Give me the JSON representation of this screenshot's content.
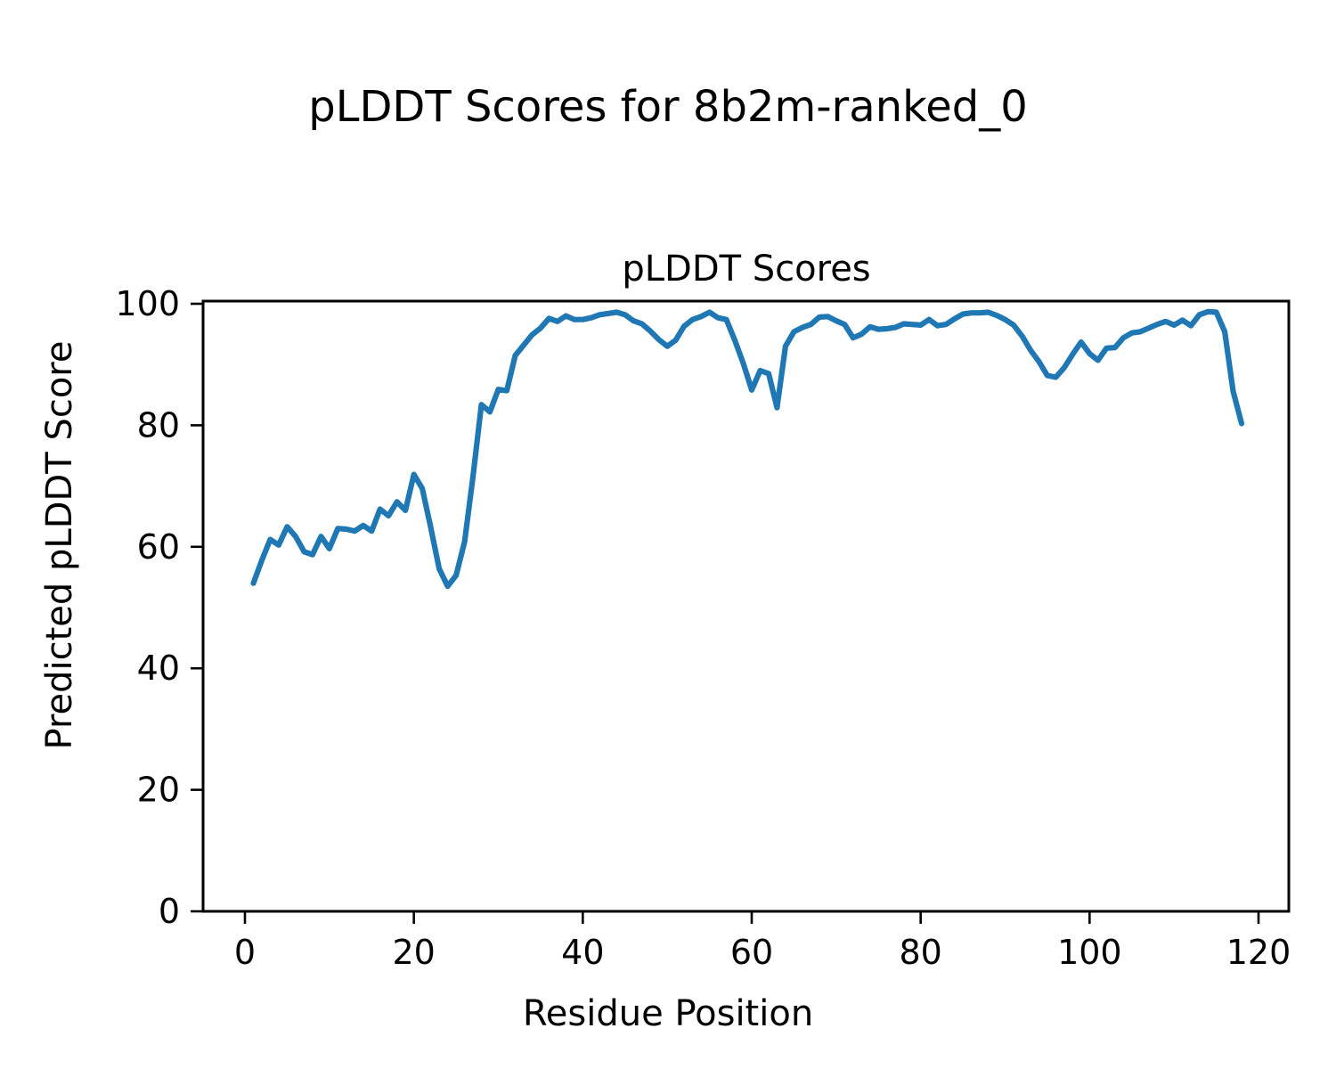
{
  "figure": {
    "suptitle": "pLDDT Scores for 8b2m-ranked_0",
    "axes_title": "pLDDT Scores",
    "xlabel": "Residue Position",
    "ylabel": "Predicted pLDDT Score"
  },
  "chart_data": {
    "type": "line",
    "suptitle": "pLDDT Scores for 8b2m-ranked_0",
    "title": "pLDDT Scores",
    "xlabel": "Residue Position",
    "ylabel": "Predicted pLDDT Score",
    "line_color": "#1f77b4",
    "grid": false,
    "legend": null,
    "xlim": [
      -4.9,
      123.7
    ],
    "ylim": [
      0,
      100.4
    ],
    "xticks": [
      0,
      20,
      40,
      60,
      80,
      100,
      120
    ],
    "yticks": [
      0,
      20,
      40,
      60,
      80,
      100
    ],
    "x_range": [
      1,
      118
    ],
    "series_name": "pLDDT",
    "values": [
      54.0,
      57.8,
      61.2,
      60.3,
      63.3,
      61.7,
      59.2,
      58.7,
      61.7,
      59.7,
      63.0,
      62.9,
      62.6,
      63.5,
      62.6,
      66.2,
      65.1,
      67.4,
      66.0,
      71.9,
      69.6,
      63.2,
      56.4,
      53.5,
      55.3,
      60.8,
      71.5,
      83.4,
      82.2,
      85.9,
      85.7,
      91.5,
      93.2,
      94.9,
      96.0,
      97.6,
      97.1,
      98.0,
      97.4,
      97.4,
      97.7,
      98.2,
      98.4,
      98.6,
      98.2,
      97.2,
      96.7,
      95.5,
      94.1,
      93.0,
      94.0,
      96.3,
      97.4,
      97.9,
      98.6,
      97.7,
      97.4,
      94.0,
      90.2,
      85.8,
      89.0,
      88.5,
      82.9,
      93.0,
      95.4,
      96.1,
      96.6,
      97.8,
      97.9,
      97.2,
      96.6,
      94.4,
      95.0,
      96.2,
      95.8,
      95.9,
      96.1,
      96.7,
      96.6,
      96.5,
      97.4,
      96.4,
      96.6,
      97.5,
      98.3,
      98.5,
      98.5,
      98.6,
      98.1,
      97.4,
      96.5,
      94.7,
      92.4,
      90.5,
      88.2,
      87.9,
      89.5,
      91.7,
      93.7,
      91.8,
      90.7,
      92.7,
      92.8,
      94.4,
      95.2,
      95.4,
      96.0,
      96.6,
      97.1,
      96.5,
      97.3,
      96.4,
      98.2,
      98.7,
      98.6,
      95.4,
      85.6,
      80.3
    ]
  }
}
